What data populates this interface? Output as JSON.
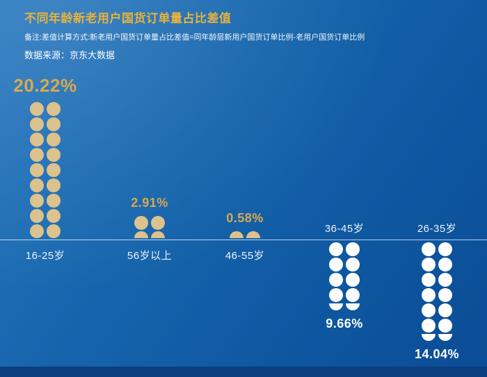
{
  "header": {
    "title": "不同年龄新老用户国货订单量占比差值",
    "note": "备注:差值计算方式:新老用户国货订单量占比差值=同年龄层新用户国货订单比例-老用户国货订单比例",
    "source": "数据来源：京东大数据"
  },
  "colors": {
    "gold_title": "#e8b33c",
    "gold_text": "#d9a94e",
    "white_text": "#ffffff",
    "icon_gold": "#dcc28d",
    "icon_white": "#ffffff",
    "background_top": "#2b7ac0",
    "background_bottom": "#0b4c95",
    "footer_strip": "#0a3e7d",
    "baseline": "#dfe9f3"
  },
  "chart_data": {
    "type": "bar",
    "subtype": "pictogram",
    "title": "不同年龄新老用户国货订单量占比差值",
    "unit": "%",
    "baseline_value": 0,
    "legend_position": "none",
    "grid": false,
    "categories": [
      "16-25岁",
      "56岁以上",
      "46-55岁",
      "36-45岁",
      "26-35岁"
    ],
    "values": [
      20.22,
      2.91,
      0.58,
      -9.66,
      -14.04
    ],
    "points": [
      {
        "category": "16-25岁",
        "value": 20.22,
        "display": "20.22%",
        "direction": "up",
        "icon_color": "gold",
        "rows": 9
      },
      {
        "category": "56岁以上",
        "value": 2.91,
        "display": "2.91%",
        "direction": "up",
        "icon_color": "gold",
        "rows": 1.5
      },
      {
        "category": "46-55岁",
        "value": 0.58,
        "display": "0.58%",
        "direction": "up",
        "icon_color": "gold",
        "rows": 0.5
      },
      {
        "category": "36-45岁",
        "value": -9.66,
        "display": "9.66%",
        "direction": "down",
        "icon_color": "white",
        "rows": 4.5
      },
      {
        "category": "26-35岁",
        "value": -14.04,
        "display": "14.04%",
        "direction": "down",
        "icon_color": "white",
        "rows": 6.5
      }
    ]
  }
}
